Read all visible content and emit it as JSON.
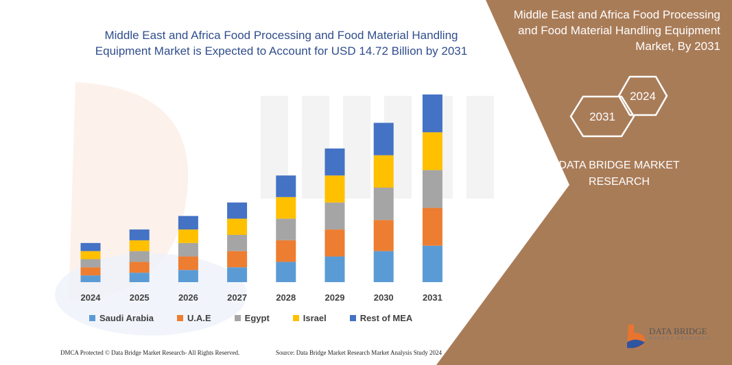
{
  "chart_title": "Middle East and Africa Food Processing and Food Material Handling Equipment Market is Expected to Account for USD 14.72 Billion by 2031",
  "panel": {
    "title": "Middle East and Africa Food Processing and Food Material Handling Equipment Market, By 2031",
    "hex_a": "2024",
    "hex_b": "2031",
    "brand": "DATA BRIDGE MARKET RESEARCH",
    "color": "#a97c58"
  },
  "chart_data": {
    "type": "bar",
    "stacked": true,
    "title": "Middle East and Africa Food Processing and Food Material Handling Equipment Market is Expected to Account for USD 14.72 Billion by 2031",
    "categories": [
      "2024",
      "2025",
      "2026",
      "2027",
      "2028",
      "2029",
      "2030",
      "2031"
    ],
    "series": [
      {
        "name": "Saudi Arabia",
        "color": "#5b9bd5",
        "values": [
          10,
          14,
          18,
          22,
          30,
          38,
          46,
          54
        ]
      },
      {
        "name": "U.A.E",
        "color": "#ed7d31",
        "values": [
          12,
          16,
          20,
          24,
          32,
          40,
          46,
          56
        ]
      },
      {
        "name": "Egypt",
        "color": "#a5a5a5",
        "values": [
          12,
          16,
          20,
          24,
          32,
          40,
          48,
          56
        ]
      },
      {
        "name": "Israel",
        "color": "#ffc000",
        "values": [
          12,
          16,
          20,
          24,
          32,
          40,
          48,
          56
        ]
      },
      {
        "name": "Rest of MEA",
        "color": "#4472c4",
        "values": [
          12,
          16,
          20,
          24,
          32,
          40,
          48,
          56
        ]
      }
    ],
    "xlabel": "",
    "ylabel": "",
    "ylim": [
      0,
      280
    ],
    "grid": false,
    "legend": "bottom"
  },
  "footer": {
    "left": "DMCA Protected © Data Bridge Market Research- All Rights Reserved.",
    "right": "Source: Data Bridge Market Research Market Analysis Study 2024"
  },
  "logo": {
    "text": "DATA BRIDGE",
    "sub": "MARKET RESEARCH"
  }
}
